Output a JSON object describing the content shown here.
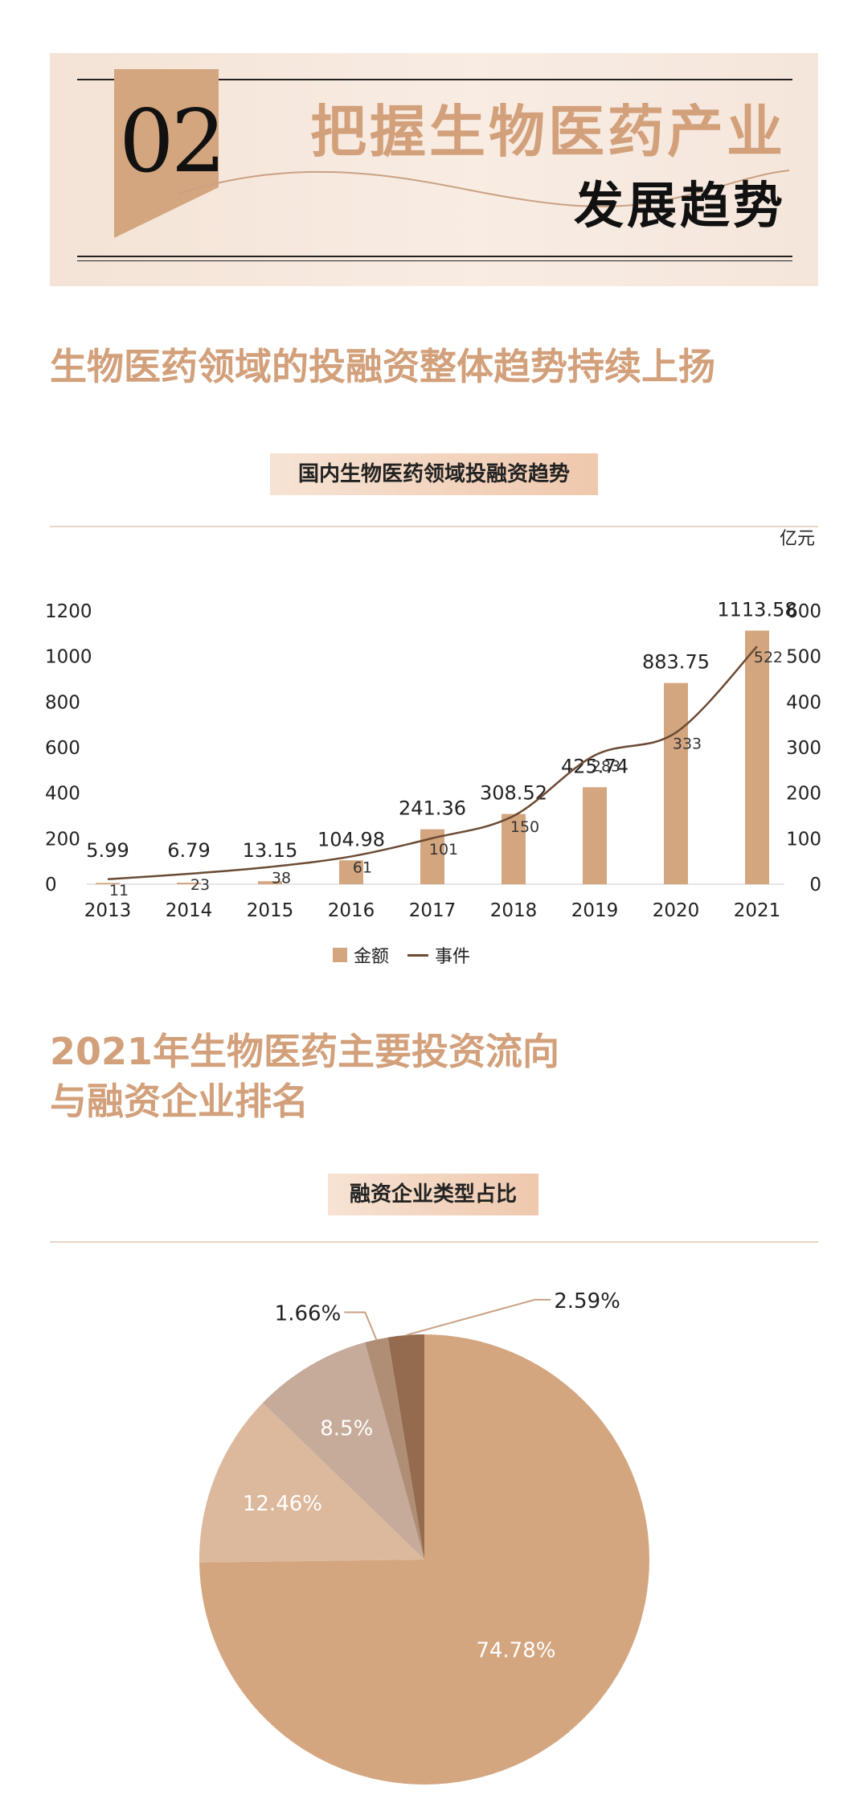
{
  "banner": {
    "number": "02",
    "title_line1": "把握生物医药产业",
    "title_line2": "发展趋势"
  },
  "section1": {
    "title": "生物医药领域的投融资整体趋势持续上扬",
    "chart_label": "国内生物医药领域投融资趋势",
    "unit": "亿元"
  },
  "legend": {
    "amount": "金额",
    "events": "事件"
  },
  "section2": {
    "title_line1": "2021年生物医药主要投资流向",
    "title_line2": "与融资企业排名",
    "chart_label": "融资企业类型占比"
  },
  "colors": {
    "accent": "#d2a07a",
    "bar": "#d4a67f",
    "line": "#6b4a33",
    "pie": [
      "#d4a67f",
      "#dcb89c",
      "#c6ab9a",
      "#b08e76",
      "#946b4e"
    ]
  },
  "chart_data": [
    {
      "type": "bar+line",
      "categories": [
        "2013",
        "2014",
        "2015",
        "2016",
        "2017",
        "2018",
        "2019",
        "2020",
        "2021"
      ],
      "series": [
        {
          "name": "金额",
          "type": "bar",
          "axis": "left",
          "values": [
            5.99,
            6.79,
            13.15,
            104.98,
            241.36,
            308.52,
            425.74,
            883.75,
            1113.58
          ]
        },
        {
          "name": "事件",
          "type": "line",
          "axis": "right",
          "values": [
            11,
            23,
            38,
            61,
            101,
            150,
            283,
            333,
            522
          ]
        }
      ],
      "y_left": {
        "ticks": [
          0,
          200,
          400,
          600,
          800,
          1000,
          1200
        ],
        "lim": [
          0,
          1200
        ]
      },
      "y_right": {
        "ticks": [
          0,
          100,
          200,
          300,
          400,
          500,
          600
        ],
        "lim": [
          0,
          600
        ]
      },
      "legend": "bottom-center",
      "grid": false
    },
    {
      "type": "pie",
      "values": [
        74.78,
        12.46,
        8.5,
        1.66,
        2.59
      ],
      "labels": [
        "74.78%",
        "12.46%",
        "8.5%",
        "1.66%",
        "2.59%"
      ]
    }
  ]
}
